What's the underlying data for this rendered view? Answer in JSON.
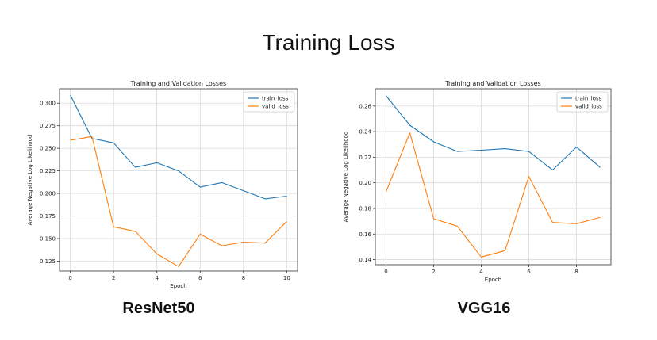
{
  "page_title": "Training Loss",
  "models": [
    "ResNet50",
    "VGG16"
  ],
  "chart_data": [
    {
      "type": "line",
      "title": "Training and Validation Losses",
      "xlabel": "Epoch",
      "ylabel": "Average Negative Log Likelihood",
      "x": [
        0,
        1,
        2,
        3,
        4,
        5,
        6,
        7,
        8,
        9,
        10
      ],
      "xticks": [
        0,
        2,
        4,
        6,
        8,
        10
      ],
      "xlim": [
        -0.5,
        10.5
      ],
      "yticks": [
        0.125,
        0.15,
        0.175,
        0.2,
        0.225,
        0.25,
        0.275,
        0.3
      ],
      "ytick_labels": [
        "0.125",
        "0.150",
        "0.175",
        "0.200",
        "0.225",
        "0.250",
        "0.275",
        "0.300"
      ],
      "ylim": [
        0.114,
        0.316
      ],
      "grid": true,
      "legend_position": "top-right",
      "series": [
        {
          "name": "train_loss",
          "color": "#1f77b4",
          "values": [
            0.309,
            0.261,
            0.256,
            0.229,
            0.234,
            0.225,
            0.207,
            0.212,
            0.203,
            0.194,
            0.197
          ]
        },
        {
          "name": "valid_loss",
          "color": "#ff7f0e",
          "values": [
            0.259,
            0.263,
            0.163,
            0.158,
            0.133,
            0.119,
            0.155,
            0.142,
            0.146,
            0.145,
            0.169
          ]
        }
      ]
    },
    {
      "type": "line",
      "title": "Training and Validation Losses",
      "xlabel": "Epoch",
      "ylabel": "Average Negative Log Likelihood",
      "x": [
        0,
        1,
        2,
        3,
        4,
        5,
        6,
        7,
        8,
        9
      ],
      "xticks": [
        0,
        2,
        4,
        6,
        8
      ],
      "xlim": [
        -0.45,
        9.45
      ],
      "yticks": [
        0.14,
        0.16,
        0.18,
        0.2,
        0.22,
        0.24,
        0.26
      ],
      "ytick_labels": [
        "0.14",
        "0.16",
        "0.18",
        "0.20",
        "0.22",
        "0.24",
        "0.26"
      ],
      "ylim": [
        0.136,
        0.2735
      ],
      "grid": true,
      "legend_position": "top-right",
      "series": [
        {
          "name": "train_loss",
          "color": "#1f77b4",
          "values": [
            0.268,
            0.245,
            0.232,
            0.2245,
            0.2255,
            0.2267,
            0.2245,
            0.21,
            0.228,
            0.212
          ]
        },
        {
          "name": "valid_loss",
          "color": "#ff7f0e",
          "values": [
            0.193,
            0.239,
            0.172,
            0.166,
            0.142,
            0.147,
            0.205,
            0.169,
            0.168,
            0.173
          ]
        }
      ]
    }
  ]
}
